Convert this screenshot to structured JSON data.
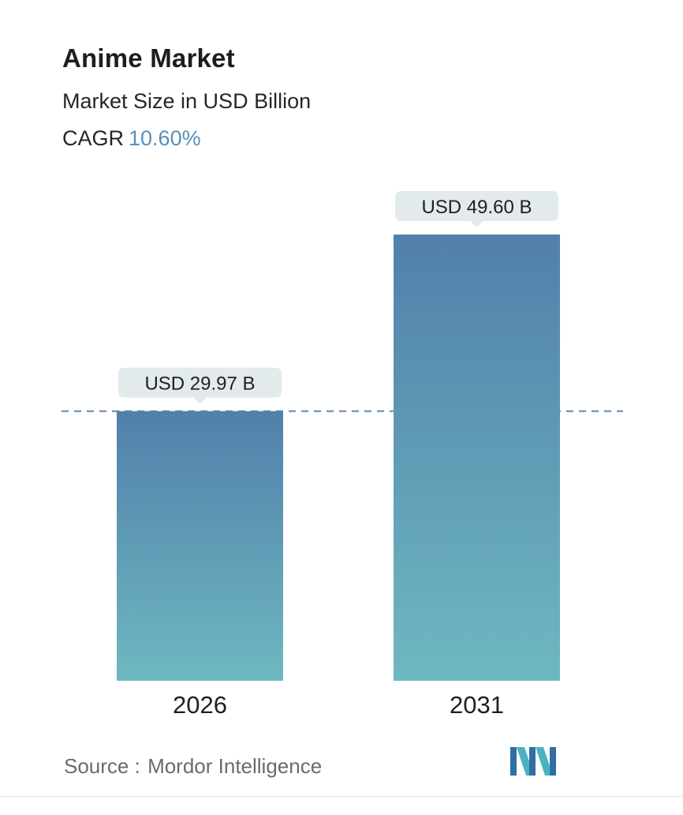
{
  "header": {
    "title": "Anime Market",
    "subtitle": "Market Size in USD Billion",
    "cagr_label": "CAGR",
    "cagr_value": "10.60%"
  },
  "chart_data": {
    "type": "bar",
    "title": "Anime Market",
    "subtitle": "Market Size in USD Billion",
    "categories": [
      "2026",
      "2031"
    ],
    "values": [
      29.97,
      49.6
    ],
    "data_labels": [
      "USD 29.97 B",
      "USD 49.60 B"
    ],
    "unit": "USD Billion",
    "ylim": [
      0,
      49.6
    ],
    "grid": false,
    "reference_line": {
      "value": 29.97,
      "style": "dashed"
    },
    "colors": {
      "bar_top": "#5180ab",
      "bar_bottom": "#6eb8c0",
      "label_bg": "#e3eaeb",
      "reference_line": "#5b86ad",
      "cagr_text": "#5a8fb8"
    }
  },
  "footer": {
    "source_label": "Source :",
    "source_value": "Mordor Intelligence",
    "logo_icon": "mordor-intelligence-logo-icon"
  }
}
